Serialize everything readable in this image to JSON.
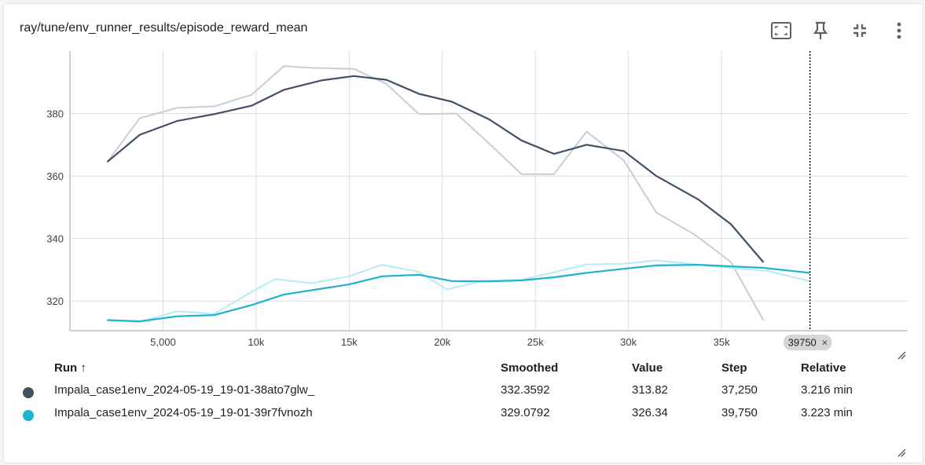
{
  "title": "ray/tune/env_runner_results/episode_reward_mean",
  "toolbar": {
    "fit_icon": "fit-to-data-icon",
    "pin_icon": "pin-icon",
    "collapse_icon": "collapse-icon",
    "more_icon": "more-vert-icon"
  },
  "chart_data": {
    "type": "line",
    "ylim": [
      310.5,
      400
    ],
    "xlim": [
      0,
      45000
    ],
    "y_ticks": [
      320,
      340,
      360,
      380
    ],
    "y_tick_labels": [
      "320",
      "340",
      "360",
      "380"
    ],
    "x_ticks": [
      5000,
      10000,
      15000,
      20000,
      25000,
      30000,
      35000
    ],
    "x_tick_labels": [
      "5,000",
      "10k",
      "15k",
      "20k",
      "25k",
      "30k",
      "35k"
    ],
    "grid": true,
    "cursor_step": 39750,
    "cursor_label": "39750",
    "series": [
      {
        "color_smoothed": "#425066",
        "color_raw": "#c9cdd6",
        "raw": {
          "x": [
            2000,
            3750,
            5750,
            7750,
            9750,
            11500,
            13000,
            15250,
            17000,
            18750,
            20750,
            22500,
            24250,
            26000,
            27750,
            29750,
            31500,
            33500,
            35500,
            37250
          ],
          "y": [
            364.5,
            378.5,
            381.8,
            382.3,
            386.0,
            395.2,
            394.6,
            394.3,
            389.5,
            379.8,
            380.0,
            370.5,
            360.6,
            360.6,
            374.2,
            365.0,
            348.3,
            341.5,
            332.5,
            313.8
          ]
        },
        "smoothed": {
          "x": [
            2000,
            3750,
            5750,
            7750,
            9750,
            11500,
            13500,
            15250,
            17000,
            18750,
            20500,
            22500,
            24250,
            26000,
            27750,
            29750,
            31500,
            33750,
            35500,
            37250
          ],
          "y": [
            364.5,
            373.2,
            377.6,
            379.8,
            382.5,
            387.6,
            390.6,
            392.0,
            390.8,
            386.3,
            383.8,
            378.2,
            371.4,
            367.1,
            370.0,
            368.0,
            360.0,
            352.5,
            344.6,
            332.4
          ]
        }
      },
      {
        "color_smoothed": "#1eb3ce",
        "color_raw": "#b5ecf5",
        "raw": {
          "x": [
            2000,
            3750,
            5750,
            7750,
            9750,
            11000,
            13000,
            15000,
            16750,
            18750,
            20250,
            22250,
            24250,
            26000,
            27750,
            29750,
            31500,
            33500,
            35500,
            37500,
            39750
          ],
          "y": [
            313.9,
            313.3,
            316.7,
            315.9,
            322.9,
            327.0,
            325.7,
            327.9,
            331.6,
            329.3,
            323.7,
            326.5,
            326.8,
            329.2,
            331.7,
            331.9,
            333.0,
            331.8,
            330.5,
            329.6,
            326.3
          ]
        },
        "smoothed": {
          "x": [
            2000,
            3750,
            5750,
            7750,
            9750,
            11500,
            13250,
            15000,
            16750,
            18750,
            20500,
            22500,
            24250,
            26000,
            27750,
            29750,
            31500,
            33750,
            35500,
            37250,
            39750
          ],
          "y": [
            313.9,
            313.5,
            315.1,
            315.5,
            318.7,
            322.1,
            323.7,
            325.3,
            327.9,
            328.4,
            326.4,
            326.3,
            326.6,
            327.6,
            329.0,
            330.3,
            331.4,
            331.6,
            331.1,
            330.6,
            329.0
          ]
        }
      }
    ]
  },
  "legend": {
    "headers": {
      "run": "Run ↑",
      "smoothed": "Smoothed",
      "value": "Value",
      "step": "Step",
      "relative": "Relative"
    },
    "rows": [
      {
        "run": "Impala_case1env_2024-05-19_19-01-38ato7glw_",
        "smoothed": "332.3592",
        "value": "313.82",
        "step": "37,250",
        "relative": "3.216 min",
        "color": "#425066"
      },
      {
        "run": "Impala_case1env_2024-05-19_19-01-39r7fvnozh",
        "smoothed": "329.0792",
        "value": "326.34",
        "step": "39,750",
        "relative": "3.223 min",
        "color": "#1eb3ce"
      }
    ]
  }
}
